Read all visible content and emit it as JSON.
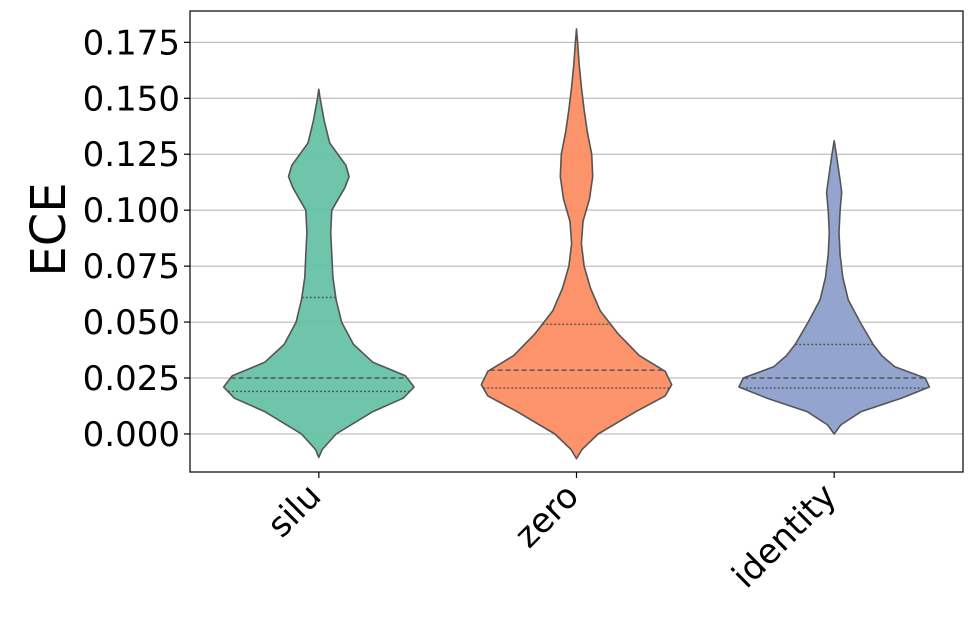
{
  "chart_data": {
    "type": "violin",
    "title": "",
    "xlabel": "",
    "ylabel": "ECE",
    "ylim": [
      -0.017,
      0.189
    ],
    "grid": "horizontal",
    "y_ticks": [
      0.0,
      0.025,
      0.05,
      0.075,
      0.1,
      0.125,
      0.15,
      0.175
    ],
    "y_tick_labels": [
      "0.000",
      "0.025",
      "0.050",
      "0.075",
      "0.100",
      "0.125",
      "0.150",
      "0.175"
    ],
    "categories": [
      "silu",
      "zero",
      "identity"
    ],
    "colors": [
      "#66c2a5",
      "#fc8d62",
      "#8da0cb"
    ],
    "violins": [
      {
        "name": "silu",
        "min": -0.0105,
        "max": 0.154,
        "q1": 0.019,
        "median": 0.025,
        "q3": 0.061,
        "profile": [
          [
            -0.0105,
            0.0
          ],
          [
            -0.007,
            0.03
          ],
          [
            0.0,
            0.16
          ],
          [
            0.01,
            0.5
          ],
          [
            0.016,
            0.78
          ],
          [
            0.021,
            0.88
          ],
          [
            0.026,
            0.8
          ],
          [
            0.032,
            0.5
          ],
          [
            0.04,
            0.32
          ],
          [
            0.05,
            0.21
          ],
          [
            0.06,
            0.16
          ],
          [
            0.07,
            0.13
          ],
          [
            0.08,
            0.12
          ],
          [
            0.09,
            0.11
          ],
          [
            0.1,
            0.12
          ],
          [
            0.11,
            0.24
          ],
          [
            0.115,
            0.28
          ],
          [
            0.12,
            0.25
          ],
          [
            0.13,
            0.1
          ],
          [
            0.14,
            0.05
          ],
          [
            0.15,
            0.012
          ],
          [
            0.154,
            0.0
          ]
        ]
      },
      {
        "name": "zero",
        "min": -0.011,
        "max": 0.181,
        "q1": 0.0205,
        "median": 0.0285,
        "q3": 0.049,
        "profile": [
          [
            -0.011,
            0.0
          ],
          [
            -0.007,
            0.05
          ],
          [
            0.0,
            0.2
          ],
          [
            0.01,
            0.55
          ],
          [
            0.017,
            0.82
          ],
          [
            0.022,
            0.88
          ],
          [
            0.028,
            0.82
          ],
          [
            0.035,
            0.58
          ],
          [
            0.045,
            0.38
          ],
          [
            0.055,
            0.22
          ],
          [
            0.065,
            0.13
          ],
          [
            0.075,
            0.07
          ],
          [
            0.085,
            0.045
          ],
          [
            0.095,
            0.06
          ],
          [
            0.105,
            0.12
          ],
          [
            0.115,
            0.15
          ],
          [
            0.125,
            0.14
          ],
          [
            0.135,
            0.1
          ],
          [
            0.145,
            0.07
          ],
          [
            0.155,
            0.045
          ],
          [
            0.165,
            0.025
          ],
          [
            0.175,
            0.01
          ],
          [
            0.181,
            0.0
          ]
        ]
      },
      {
        "name": "identity",
        "min": 0.0,
        "max": 0.131,
        "q1": 0.0205,
        "median": 0.025,
        "q3": 0.04,
        "profile": [
          [
            0.0,
            0.0
          ],
          [
            0.004,
            0.06
          ],
          [
            0.01,
            0.25
          ],
          [
            0.016,
            0.62
          ],
          [
            0.021,
            0.88
          ],
          [
            0.025,
            0.84
          ],
          [
            0.03,
            0.56
          ],
          [
            0.035,
            0.44
          ],
          [
            0.04,
            0.36
          ],
          [
            0.05,
            0.24
          ],
          [
            0.06,
            0.13
          ],
          [
            0.07,
            0.08
          ],
          [
            0.08,
            0.055
          ],
          [
            0.09,
            0.045
          ],
          [
            0.1,
            0.055
          ],
          [
            0.108,
            0.07
          ],
          [
            0.115,
            0.05
          ],
          [
            0.125,
            0.02
          ],
          [
            0.131,
            0.0
          ]
        ]
      }
    ]
  }
}
